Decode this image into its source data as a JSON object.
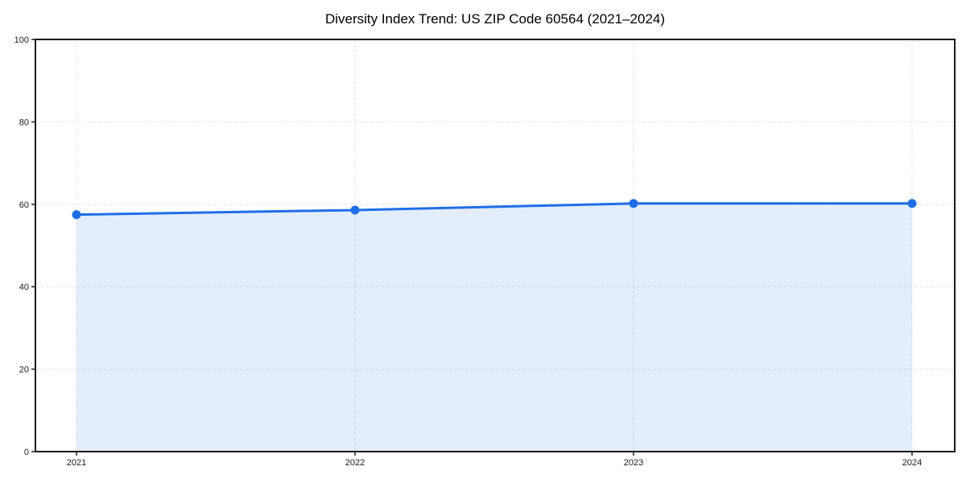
{
  "chart_data": {
    "type": "area",
    "title": "Diversity Index Trend: US ZIP Code 60564 (2021–2024)",
    "series_name": "Diversity Index",
    "x": [
      2021,
      2022,
      2023,
      2024
    ],
    "xtick_labels": [
      "2021",
      "2022",
      "2023",
      "2024"
    ],
    "values": [
      57.5,
      58.6,
      60.2,
      60.2
    ],
    "xlabel": "",
    "ylabel": "",
    "ylim": [
      0,
      100
    ],
    "yticks": [
      0,
      20,
      40,
      60,
      80,
      100
    ],
    "grid": true,
    "grid_style": "dashed",
    "legend_position": "none",
    "colors": {
      "line": "#1e6ee8",
      "marker": "#1e6ee8",
      "fill": "#1e6ee8",
      "fill_opacity": 0.12,
      "grid": "#e3e3e3",
      "spine": "#1a1a1a",
      "tick": "#1a1a1a",
      "title": "#000000",
      "background": "#ffffff"
    }
  }
}
